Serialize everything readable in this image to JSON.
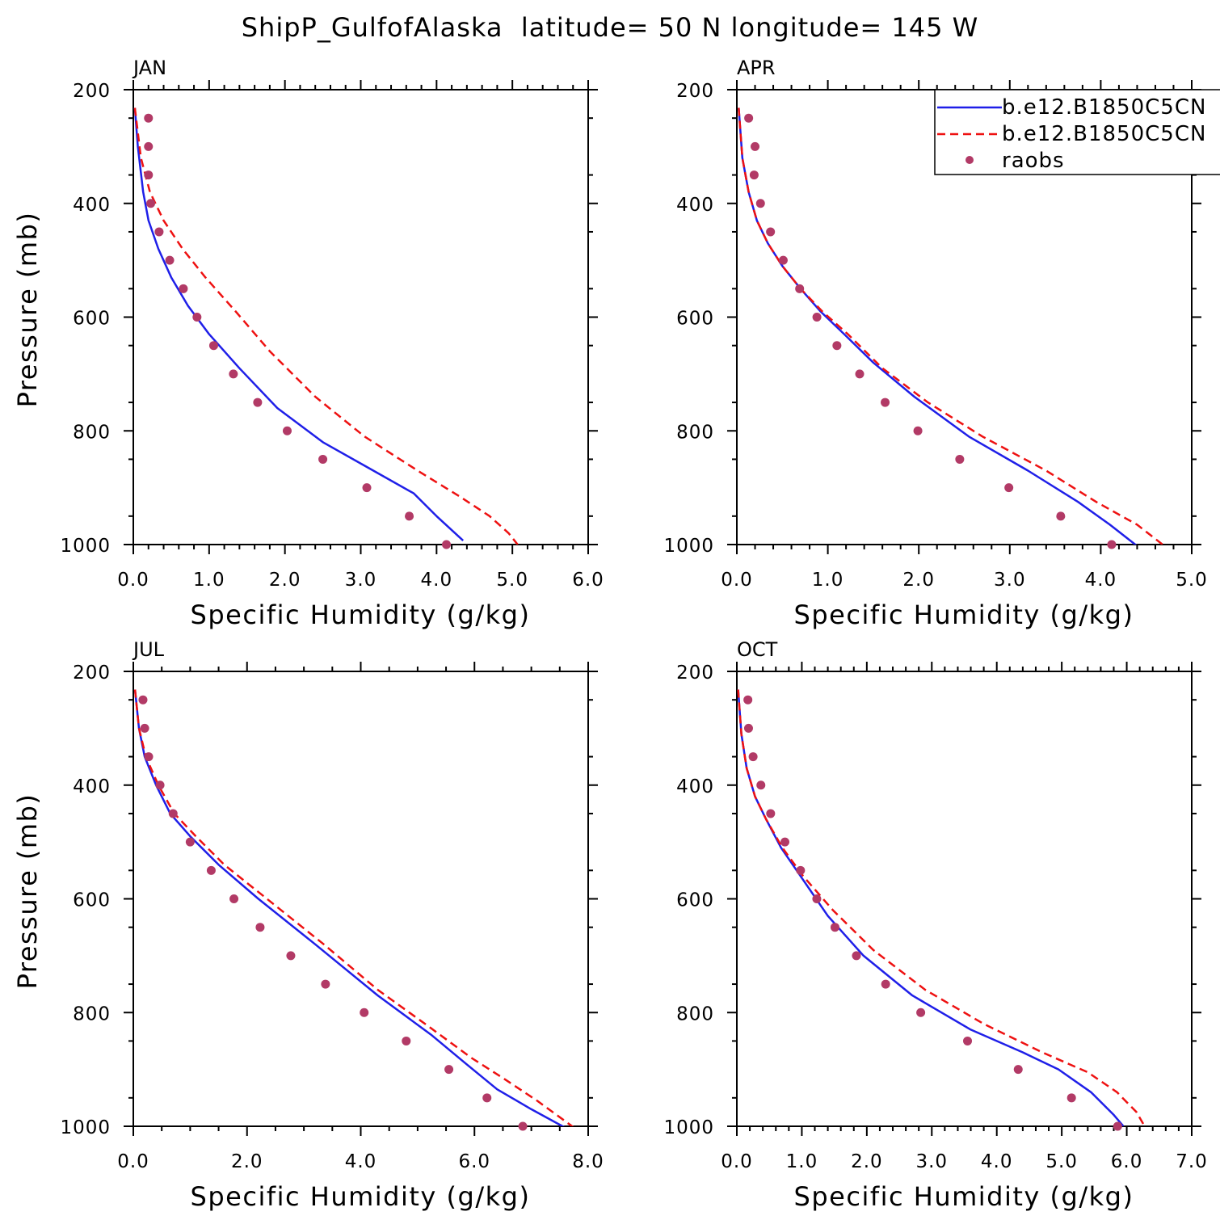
{
  "title": "ShipP_GulfofAlaska  latitude= 50 N longitude= 145 W",
  "colors": {
    "model1": "#1f1fe8",
    "model2": "#ee1111",
    "obs": "#b23a66"
  },
  "legend": {
    "entries": [
      {
        "label": "b.e12.B1850C5CN",
        "style": "solid",
        "color": "#1f1fe8"
      },
      {
        "label": "b.e12.B1850C5CN",
        "style": "dashed",
        "color": "#ee1111"
      },
      {
        "label": "raobs",
        "style": "marker",
        "color": "#b23a66"
      }
    ]
  },
  "chart_data": [
    {
      "type": "line",
      "panel_label": "JAN",
      "xlabel": "Specific Humidity (g/kg)",
      "ylabel": "Pressure (mb)",
      "xlim": [
        0,
        6
      ],
      "xticks": [
        "0.0",
        "1.0",
        "2.0",
        "3.0",
        "4.0",
        "5.0",
        "6.0"
      ],
      "ylim": [
        200,
        1000
      ],
      "yticks": [
        "200",
        "400",
        "600",
        "800",
        "1000"
      ],
      "series": [
        {
          "name": "b.e12.B1850C5CN",
          "style": "solid",
          "x": [
            0.02,
            0.06,
            0.13,
            0.2,
            0.33,
            0.5,
            0.72,
            1.0,
            1.4,
            1.9,
            2.5,
            3.1,
            3.7,
            4.0,
            4.35
          ],
          "y": [
            232,
            300,
            380,
            430,
            480,
            530,
            580,
            630,
            690,
            760,
            820,
            865,
            910,
            950,
            993
          ]
        },
        {
          "name": "b.e12.B1850C5CN",
          "style": "dashed",
          "x": [
            0.02,
            0.1,
            0.22,
            0.4,
            0.65,
            0.95,
            1.35,
            1.8,
            2.4,
            3.05,
            3.75,
            4.3,
            4.7,
            4.95,
            5.07
          ],
          "y": [
            232,
            320,
            380,
            430,
            480,
            530,
            590,
            660,
            740,
            810,
            870,
            915,
            950,
            980,
            1000
          ]
        },
        {
          "name": "raobs",
          "style": "marker",
          "x": [
            0.2,
            0.2,
            0.2,
            0.23,
            0.34,
            0.48,
            0.66,
            0.84,
            1.06,
            1.32,
            1.64,
            2.03,
            2.5,
            3.08,
            3.64,
            4.13
          ],
          "y": [
            250,
            300,
            350,
            400,
            450,
            500,
            550,
            600,
            650,
            700,
            750,
            800,
            850,
            900,
            950,
            1000
          ]
        }
      ]
    },
    {
      "type": "line",
      "panel_label": "APR",
      "xlabel": "Specific Humidity (g/kg)",
      "ylabel": "",
      "xlim": [
        0,
        5
      ],
      "xticks": [
        "0.0",
        "1.0",
        "2.0",
        "3.0",
        "4.0",
        "5.0"
      ],
      "ylim": [
        200,
        1000
      ],
      "yticks": [
        "200",
        "400",
        "600",
        "800",
        "1000"
      ],
      "series": [
        {
          "name": "b.e12.B1850C5CN",
          "style": "solid",
          "x": [
            0.02,
            0.06,
            0.13,
            0.22,
            0.34,
            0.5,
            0.7,
            0.92,
            1.18,
            1.5,
            1.95,
            2.55,
            3.2,
            3.75,
            4.1,
            4.42
          ],
          "y": [
            232,
            320,
            380,
            430,
            470,
            510,
            550,
            590,
            630,
            680,
            740,
            810,
            870,
            925,
            965,
            1005
          ]
        },
        {
          "name": "b.e12.B1850C5CN",
          "style": "dashed",
          "x": [
            0.02,
            0.06,
            0.13,
            0.22,
            0.34,
            0.5,
            0.7,
            0.94,
            1.22,
            1.6,
            2.1,
            2.7,
            3.4,
            3.95,
            4.4,
            4.72
          ],
          "y": [
            232,
            320,
            380,
            430,
            470,
            510,
            550,
            590,
            630,
            690,
            750,
            810,
            870,
            925,
            965,
            1005
          ]
        },
        {
          "name": "raobs",
          "style": "marker",
          "x": [
            0.13,
            0.2,
            0.19,
            0.26,
            0.37,
            0.51,
            0.69,
            0.88,
            1.1,
            1.35,
            1.63,
            1.99,
            2.45,
            2.99,
            3.56,
            4.12
          ],
          "y": [
            250,
            300,
            350,
            400,
            450,
            500,
            550,
            600,
            650,
            700,
            750,
            800,
            850,
            900,
            950,
            1000
          ]
        }
      ]
    },
    {
      "type": "line",
      "panel_label": "JUL",
      "xlabel": "Specific Humidity (g/kg)",
      "ylabel": "Pressure (mb)",
      "xlim": [
        0,
        8
      ],
      "xticks": [
        "0.0",
        "2.0",
        "4.0",
        "6.0",
        "8.0"
      ],
      "ylim": [
        200,
        1000
      ],
      "yticks": [
        "200",
        "400",
        "600",
        "800",
        "1000"
      ],
      "series": [
        {
          "name": "b.e12.B1850C5CN",
          "style": "solid",
          "x": [
            0.03,
            0.1,
            0.2,
            0.4,
            0.65,
            1.0,
            1.5,
            2.2,
            3.2,
            4.3,
            5.25,
            5.85,
            6.4,
            7.0,
            7.55,
            7.75
          ],
          "y": [
            232,
            300,
            350,
            400,
            450,
            490,
            540,
            600,
            680,
            770,
            840,
            890,
            935,
            970,
            1000,
            1010
          ]
        },
        {
          "name": "b.e12.B1850C5CN",
          "style": "dashed",
          "x": [
            0.03,
            0.1,
            0.22,
            0.44,
            0.72,
            1.1,
            1.6,
            2.35,
            3.35,
            4.3,
            5.2,
            5.95,
            6.5,
            7.1,
            7.65,
            7.88
          ],
          "y": [
            232,
            300,
            350,
            400,
            450,
            490,
            540,
            600,
            680,
            760,
            825,
            880,
            915,
            955,
            995,
            1012
          ]
        },
        {
          "name": "raobs",
          "style": "marker",
          "x": [
            0.17,
            0.2,
            0.27,
            0.47,
            0.7,
            1.0,
            1.37,
            1.77,
            2.23,
            2.77,
            3.38,
            4.06,
            4.8,
            5.55,
            6.22,
            6.85
          ],
          "y": [
            250,
            300,
            350,
            400,
            450,
            500,
            550,
            600,
            650,
            700,
            750,
            800,
            850,
            900,
            950,
            1000
          ]
        }
      ]
    },
    {
      "type": "line",
      "panel_label": "OCT",
      "xlabel": "Specific Humidity (g/kg)",
      "ylabel": "",
      "xlim": [
        0,
        7
      ],
      "xticks": [
        "0.0",
        "1.0",
        "2.0",
        "3.0",
        "4.0",
        "5.0",
        "6.0",
        "7.0"
      ],
      "ylim": [
        200,
        1000
      ],
      "yticks": [
        "200",
        "400",
        "600",
        "800",
        "1000"
      ],
      "series": [
        {
          "name": "b.e12.B1850C5CN",
          "style": "solid",
          "x": [
            0.02,
            0.07,
            0.15,
            0.28,
            0.45,
            0.68,
            0.98,
            1.4,
            1.95,
            2.7,
            3.6,
            4.4,
            4.95,
            5.45,
            5.8,
            5.95
          ],
          "y": [
            232,
            310,
            370,
            420,
            460,
            510,
            560,
            630,
            700,
            770,
            830,
            870,
            900,
            940,
            980,
            1000
          ]
        },
        {
          "name": "b.e12.B1850C5CN",
          "style": "dashed",
          "x": [
            0.02,
            0.07,
            0.15,
            0.28,
            0.45,
            0.7,
            1.02,
            1.48,
            2.1,
            2.9,
            3.8,
            4.7,
            5.4,
            5.85,
            6.15,
            6.3
          ],
          "y": [
            232,
            310,
            370,
            420,
            460,
            510,
            560,
            620,
            690,
            760,
            820,
            870,
            905,
            940,
            975,
            1005
          ]
        },
        {
          "name": "raobs",
          "style": "marker",
          "x": [
            0.17,
            0.18,
            0.25,
            0.37,
            0.52,
            0.74,
            0.98,
            1.23,
            1.51,
            1.84,
            2.29,
            2.83,
            3.55,
            4.33,
            5.15,
            5.86
          ],
          "y": [
            250,
            300,
            350,
            400,
            450,
            500,
            550,
            600,
            650,
            700,
            750,
            800,
            850,
            900,
            950,
            1000
          ]
        }
      ]
    }
  ]
}
